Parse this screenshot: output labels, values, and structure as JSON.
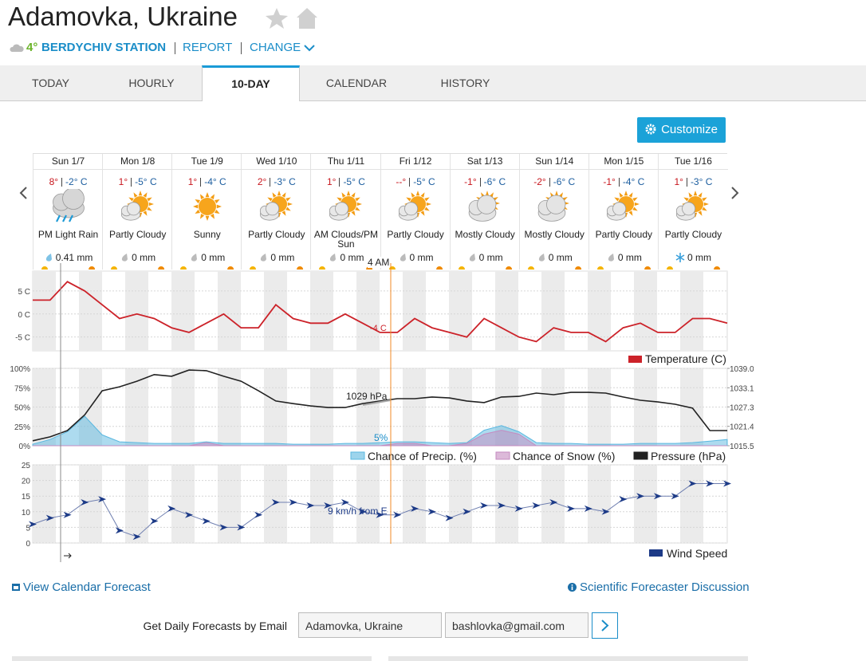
{
  "header": {
    "title": "Adamovka, Ukraine",
    "temperature": "4°",
    "station": "BERDYCHIV STATION",
    "report": "REPORT",
    "change": "CHANGE"
  },
  "tabs": [
    "TODAY",
    "HOURLY",
    "10-DAY",
    "CALENDAR",
    "HISTORY"
  ],
  "customize": "Customize",
  "forecast": [
    {
      "date": "Sun 1/7",
      "high": "8°",
      "low": "-2° C",
      "condition": "PM Light Rain",
      "precip": "0.41 mm"
    },
    {
      "date": "Mon 1/8",
      "high": "1°",
      "low": "-5° C",
      "condition": "Partly Cloudy",
      "precip": "0 mm"
    },
    {
      "date": "Tue 1/9",
      "high": "1°",
      "low": "-4° C",
      "condition": "Sunny",
      "precip": "0 mm"
    },
    {
      "date": "Wed 1/10",
      "high": "2°",
      "low": "-3° C",
      "condition": "Partly Cloudy",
      "precip": "0 mm"
    },
    {
      "date": "Thu 1/11",
      "high": "1°",
      "low": "-5° C",
      "condition": "AM Clouds/PM Sun",
      "precip": "0 mm"
    },
    {
      "date": "Fri 1/12",
      "high": "--°",
      "low": "-5° C",
      "condition": "Partly Cloudy",
      "precip": "0 mm"
    },
    {
      "date": "Sat 1/13",
      "high": "-1°",
      "low": "-6° C",
      "condition": "Mostly Cloudy",
      "precip": "0 mm"
    },
    {
      "date": "Sun 1/14",
      "high": "-2°",
      "low": "-6° C",
      "condition": "Mostly Cloudy",
      "precip": "0 mm"
    },
    {
      "date": "Mon 1/15",
      "high": "-1°",
      "low": "-4° C",
      "condition": "Partly Cloudy",
      "precip": "0 mm"
    },
    {
      "date": "Tue 1/16",
      "high": "1°",
      "low": "-3° C",
      "condition": "Partly Cloudy",
      "precip": "0 mm"
    }
  ],
  "charts": {
    "temperature": {
      "type": "line",
      "legend": "Temperature (C)",
      "color": "#cc2229",
      "ylim": [
        -8,
        9.3
      ],
      "yticks": [
        {
          "value": 5,
          "label": "5 C"
        },
        {
          "value": 0,
          "label": "0 C"
        },
        {
          "value": -5,
          "label": "-5 C"
        }
      ],
      "values": [
        3,
        3,
        7,
        5,
        2,
        -1,
        0,
        -1,
        -3,
        -4,
        -2,
        0,
        -3,
        -3,
        2,
        -1,
        -2,
        -2,
        0,
        -2,
        -4,
        -4,
        -1,
        -3,
        -4,
        -5,
        -1,
        -3,
        -5,
        -6,
        -3,
        -4,
        -4,
        -6,
        -3,
        -2,
        -4,
        -4,
        -1,
        -1,
        -2
      ],
      "annotation": "-4 C",
      "time_label": "4 AM"
    },
    "precip": {
      "type": "area",
      "ylim": [
        0,
        100
      ],
      "yticks": [
        {
          "value": 0,
          "label": "0%"
        },
        {
          "value": 25,
          "label": "25%"
        },
        {
          "value": 50,
          "label": "50%"
        },
        {
          "value": 75,
          "label": "75%"
        },
        {
          "value": 100,
          "label": "100%"
        }
      ],
      "y2lim": [
        1015.5,
        1039
      ],
      "y2ticks": [
        1015.5,
        1021.4,
        1027.3,
        1033.1,
        {
          "value": 1039,
          "label": "1039.0"
        }
      ],
      "series": [
        {
          "name": "Chance of Precip. (%)",
          "color": "#5bb8e0",
          "values": [
            2,
            8,
            18,
            38,
            14,
            5,
            4,
            3,
            3,
            3,
            5,
            3,
            3,
            3,
            3,
            2,
            2,
            2,
            3,
            3,
            4,
            5,
            5,
            4,
            3,
            4,
            20,
            26,
            18,
            4,
            3,
            3,
            2,
            2,
            2,
            3,
            3,
            3,
            4,
            6,
            8
          ]
        },
        {
          "name": "Chance of Snow (%)",
          "color": "#c58bc0",
          "values": [
            0,
            0,
            0,
            0,
            0,
            0,
            0,
            0,
            0,
            0,
            4,
            0,
            0,
            0,
            0,
            0,
            0,
            0,
            0,
            0,
            0,
            3,
            3,
            0,
            0,
            3,
            15,
            20,
            15,
            0,
            0,
            0,
            0,
            0,
            0,
            0,
            0,
            0,
            0,
            0,
            0
          ]
        },
        {
          "name": "Pressure (hPa)",
          "color": "#222222",
          "axis": "y2",
          "values": [
            1017.0,
            1018.2,
            1020.1,
            1024.9,
            1032.2,
            1033.4,
            1035.1,
            1037.1,
            1036.6,
            1038.5,
            1038.3,
            1036.6,
            1035.1,
            1032.2,
            1029.1,
            1028.3,
            1027.6,
            1027.1,
            1027.1,
            1028.3,
            1029.1,
            1029.8,
            1029.8,
            1030.3,
            1030.0,
            1029.1,
            1028.6,
            1030.3,
            1030.5,
            1031.5,
            1031.0,
            1031.7,
            1031.7,
            1031.5,
            1030.3,
            1029.3,
            1028.8,
            1028.1,
            1026.9,
            1020.1,
            1020.1
          ]
        }
      ],
      "annotations": [
        "1029 hPa",
        "5%"
      ]
    },
    "wind": {
      "type": "line",
      "ylim": [
        0,
        25
      ],
      "yticks": [
        0,
        5,
        10,
        15,
        20,
        25
      ],
      "series": [
        {
          "name": "Wind Speed",
          "color": "#1c3a87",
          "values": [
            6,
            8,
            9,
            13,
            14,
            4,
            2,
            7,
            11,
            9,
            7,
            5,
            5,
            9,
            13,
            13,
            12,
            12,
            13,
            10,
            9,
            9,
            11,
            10,
            8,
            10,
            12,
            12,
            11,
            12,
            13,
            11,
            11,
            10,
            14,
            15,
            15,
            15,
            19,
            19,
            19
          ]
        }
      ],
      "annotation": "9 km/h from E"
    }
  },
  "links": {
    "calendar": "View Calendar Forecast",
    "discussion": "Scientific Forecaster Discussion"
  },
  "email": {
    "label": "Get Daily Forecasts by Email",
    "location": "Adamovka, Ukraine",
    "address": "bashlovka@gmail.com"
  }
}
